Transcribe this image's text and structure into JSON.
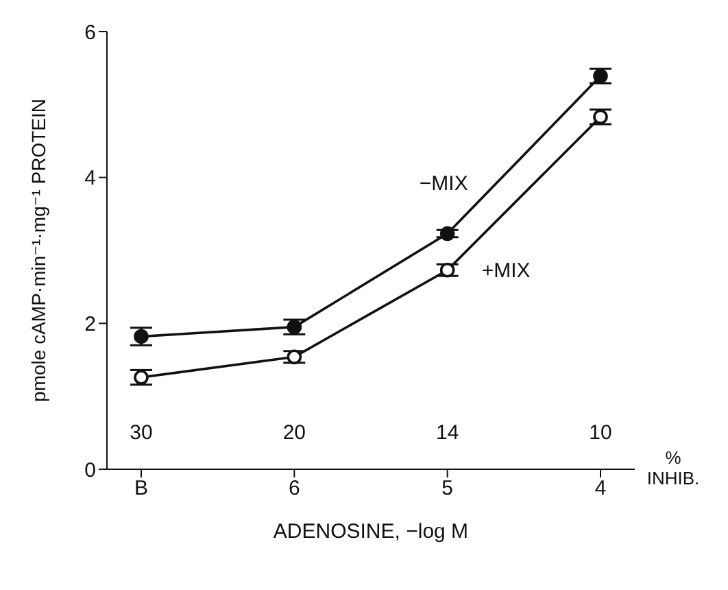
{
  "chart_data": {
    "type": "line",
    "xlabel": "ADENOSINE,   −log M",
    "ylabel": "pmole cAMP·min⁻¹·mg⁻¹ PROTEIN",
    "categories": [
      "B",
      "6",
      "5",
      "4"
    ],
    "series": [
      {
        "name": "−MIX",
        "color": "#111111",
        "values": [
          1.82,
          1.95,
          3.23,
          5.39
        ],
        "errors": [
          0.12,
          0.1,
          0.05,
          0.1
        ]
      },
      {
        "name": "+MIX",
        "color": "#111111",
        "values": [
          1.26,
          1.54,
          2.73,
          4.83
        ],
        "errors": [
          0.1,
          0.08,
          0.08,
          0.1
        ]
      }
    ],
    "ylim": [
      0,
      6
    ],
    "yticks": [
      0,
      2,
      4,
      6
    ],
    "grid": false,
    "legend": false,
    "marker": "circle",
    "line_style": "solid",
    "annotations": [
      "30",
      "20",
      "14",
      "10",
      "% INHIB."
    ]
  }
}
